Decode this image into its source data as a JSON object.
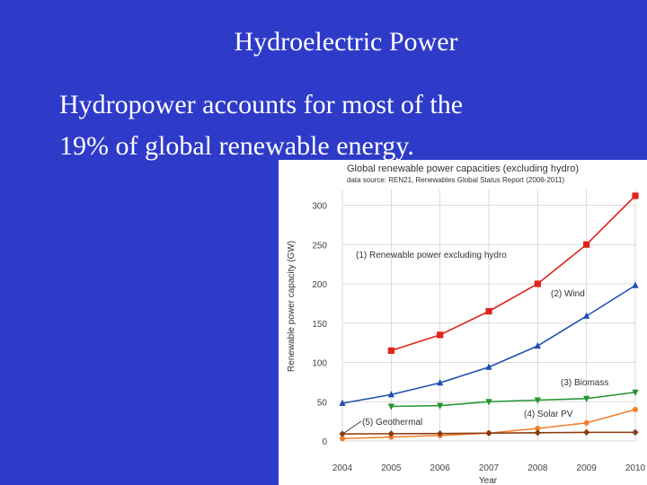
{
  "slide": {
    "title": "Hydroelectric Power",
    "body_lines": [
      "Hydropower accounts for most of the",
      "19% of global renewable energy."
    ]
  },
  "colors": {
    "background": "#2e3bc8",
    "renewable": "#e0241c",
    "wind": "#1f4fb0",
    "biomass": "#22952e",
    "solar": "#f07f2a",
    "geothermal": "#8a3b0e"
  },
  "chart_data": {
    "type": "line",
    "title": "Global renewable power capacities (excluding hydro)",
    "subtitle": "data source: REN21, Renewables Global Status Report (2006-2011)",
    "xlabel": "Year",
    "ylabel": "Renewable power capacity (GW)",
    "ylim": [
      0,
      320
    ],
    "yticks": [
      0,
      50,
      100,
      150,
      200,
      250,
      300
    ],
    "xlim": [
      2004,
      2010
    ],
    "x": [
      2004,
      2005,
      2006,
      2007,
      2008,
      2009,
      2010
    ],
    "grid": true,
    "series": [
      {
        "name": "(1) Renewable power excluding hydro",
        "color": "#e0241c",
        "marker": "square",
        "values": [
          null,
          115,
          135,
          165,
          200,
          250,
          312
        ]
      },
      {
        "name": "(2) Wind",
        "color": "#1f4fb0",
        "marker": "triangle-up",
        "values": [
          48,
          59,
          74,
          94,
          121,
          159,
          198
        ]
      },
      {
        "name": "(3) Biomass",
        "color": "#22952e",
        "marker": "triangle-down",
        "values": [
          null,
          44,
          45,
          50,
          52,
          54,
          62
        ]
      },
      {
        "name": "(4) Solar PV",
        "color": "#f07f2a",
        "marker": "circle",
        "values": [
          3,
          5,
          7,
          10,
          16,
          23,
          40
        ]
      },
      {
        "name": "(5) Geothermal",
        "color": "#8a3b0e",
        "marker": "diamond",
        "values": [
          9,
          9.3,
          9.5,
          10,
          10.5,
          11,
          11
        ]
      }
    ]
  }
}
